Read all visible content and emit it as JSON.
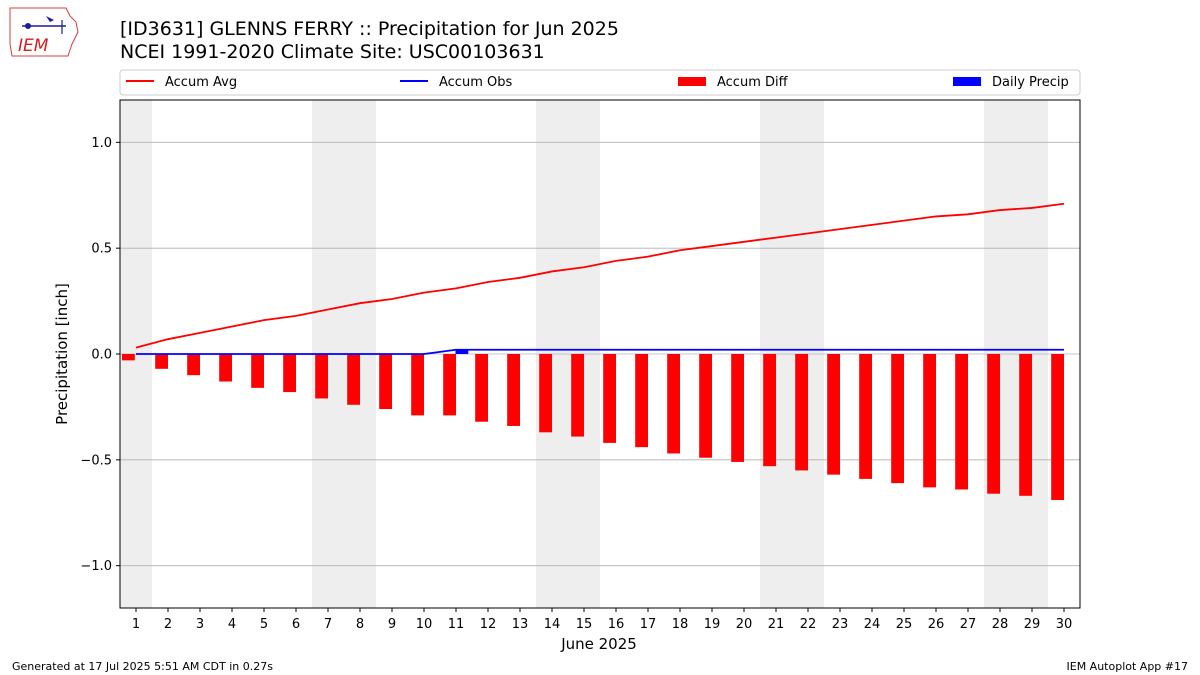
{
  "header": {
    "title_line1": "[ID3631] GLENNS FERRY :: Precipitation for Jun 2025",
    "title_line2": "NCEI 1991-2020 Climate Site: USC00103631"
  },
  "logo": {
    "text": "IEM"
  },
  "footer": {
    "left": "Generated at 17 Jul 2025 5:51 AM CDT in 0.27s",
    "right": "IEM Autoplot App #17"
  },
  "colors": {
    "avg": "#ff0000",
    "obs": "#0000ff",
    "diff": "#ff0000",
    "daily": "#0000ff",
    "weekend": "#eeeeee"
  },
  "chart_data": {
    "type": "bar",
    "xlabel": "June 2025",
    "ylabel": "Precipitation [inch]",
    "ylim": [
      -1.2,
      1.2
    ],
    "yticks": [
      1.0,
      0.5,
      0.0,
      -0.5,
      -1.0
    ],
    "ytick_labels": [
      "1.0",
      "0.5",
      "0.0",
      "−0.5",
      "−1.0"
    ],
    "grid": true,
    "legend_position": "top",
    "days": [
      1,
      2,
      3,
      4,
      5,
      6,
      7,
      8,
      9,
      10,
      11,
      12,
      13,
      14,
      15,
      16,
      17,
      18,
      19,
      20,
      21,
      22,
      23,
      24,
      25,
      26,
      27,
      28,
      29,
      30
    ],
    "weekend_days": [
      1,
      7,
      8,
      14,
      15,
      21,
      22,
      28,
      29
    ],
    "series": [
      {
        "name": "Accum Avg",
        "kind": "line",
        "values": [
          0.03,
          0.07,
          0.1,
          0.13,
          0.16,
          0.18,
          0.21,
          0.24,
          0.26,
          0.29,
          0.31,
          0.34,
          0.36,
          0.39,
          0.41,
          0.44,
          0.46,
          0.49,
          0.51,
          0.53,
          0.55,
          0.57,
          0.59,
          0.61,
          0.63,
          0.65,
          0.66,
          0.68,
          0.69,
          0.71
        ]
      },
      {
        "name": "Accum Obs",
        "kind": "line",
        "values": [
          0,
          0,
          0,
          0,
          0,
          0,
          0,
          0,
          0,
          0,
          0.02,
          0.02,
          0.02,
          0.02,
          0.02,
          0.02,
          0.02,
          0.02,
          0.02,
          0.02,
          0.02,
          0.02,
          0.02,
          0.02,
          0.02,
          0.02,
          0.02,
          0.02,
          0.02,
          0.02
        ]
      },
      {
        "name": "Accum Diff",
        "kind": "bar",
        "values": [
          -0.03,
          -0.07,
          -0.1,
          -0.13,
          -0.16,
          -0.18,
          -0.21,
          -0.24,
          -0.26,
          -0.29,
          -0.29,
          -0.32,
          -0.34,
          -0.37,
          -0.39,
          -0.42,
          -0.44,
          -0.47,
          -0.49,
          -0.51,
          -0.53,
          -0.55,
          -0.57,
          -0.59,
          -0.61,
          -0.63,
          -0.64,
          -0.66,
          -0.67,
          -0.69
        ]
      },
      {
        "name": "Daily Precip",
        "kind": "bar",
        "values": [
          0,
          0,
          0,
          0,
          0,
          0,
          0,
          0,
          0,
          0,
          0.02,
          0,
          0,
          0,
          0,
          0,
          0,
          0,
          0,
          0,
          0,
          0,
          0,
          0,
          0,
          0,
          0,
          0,
          0,
          0
        ]
      }
    ]
  }
}
